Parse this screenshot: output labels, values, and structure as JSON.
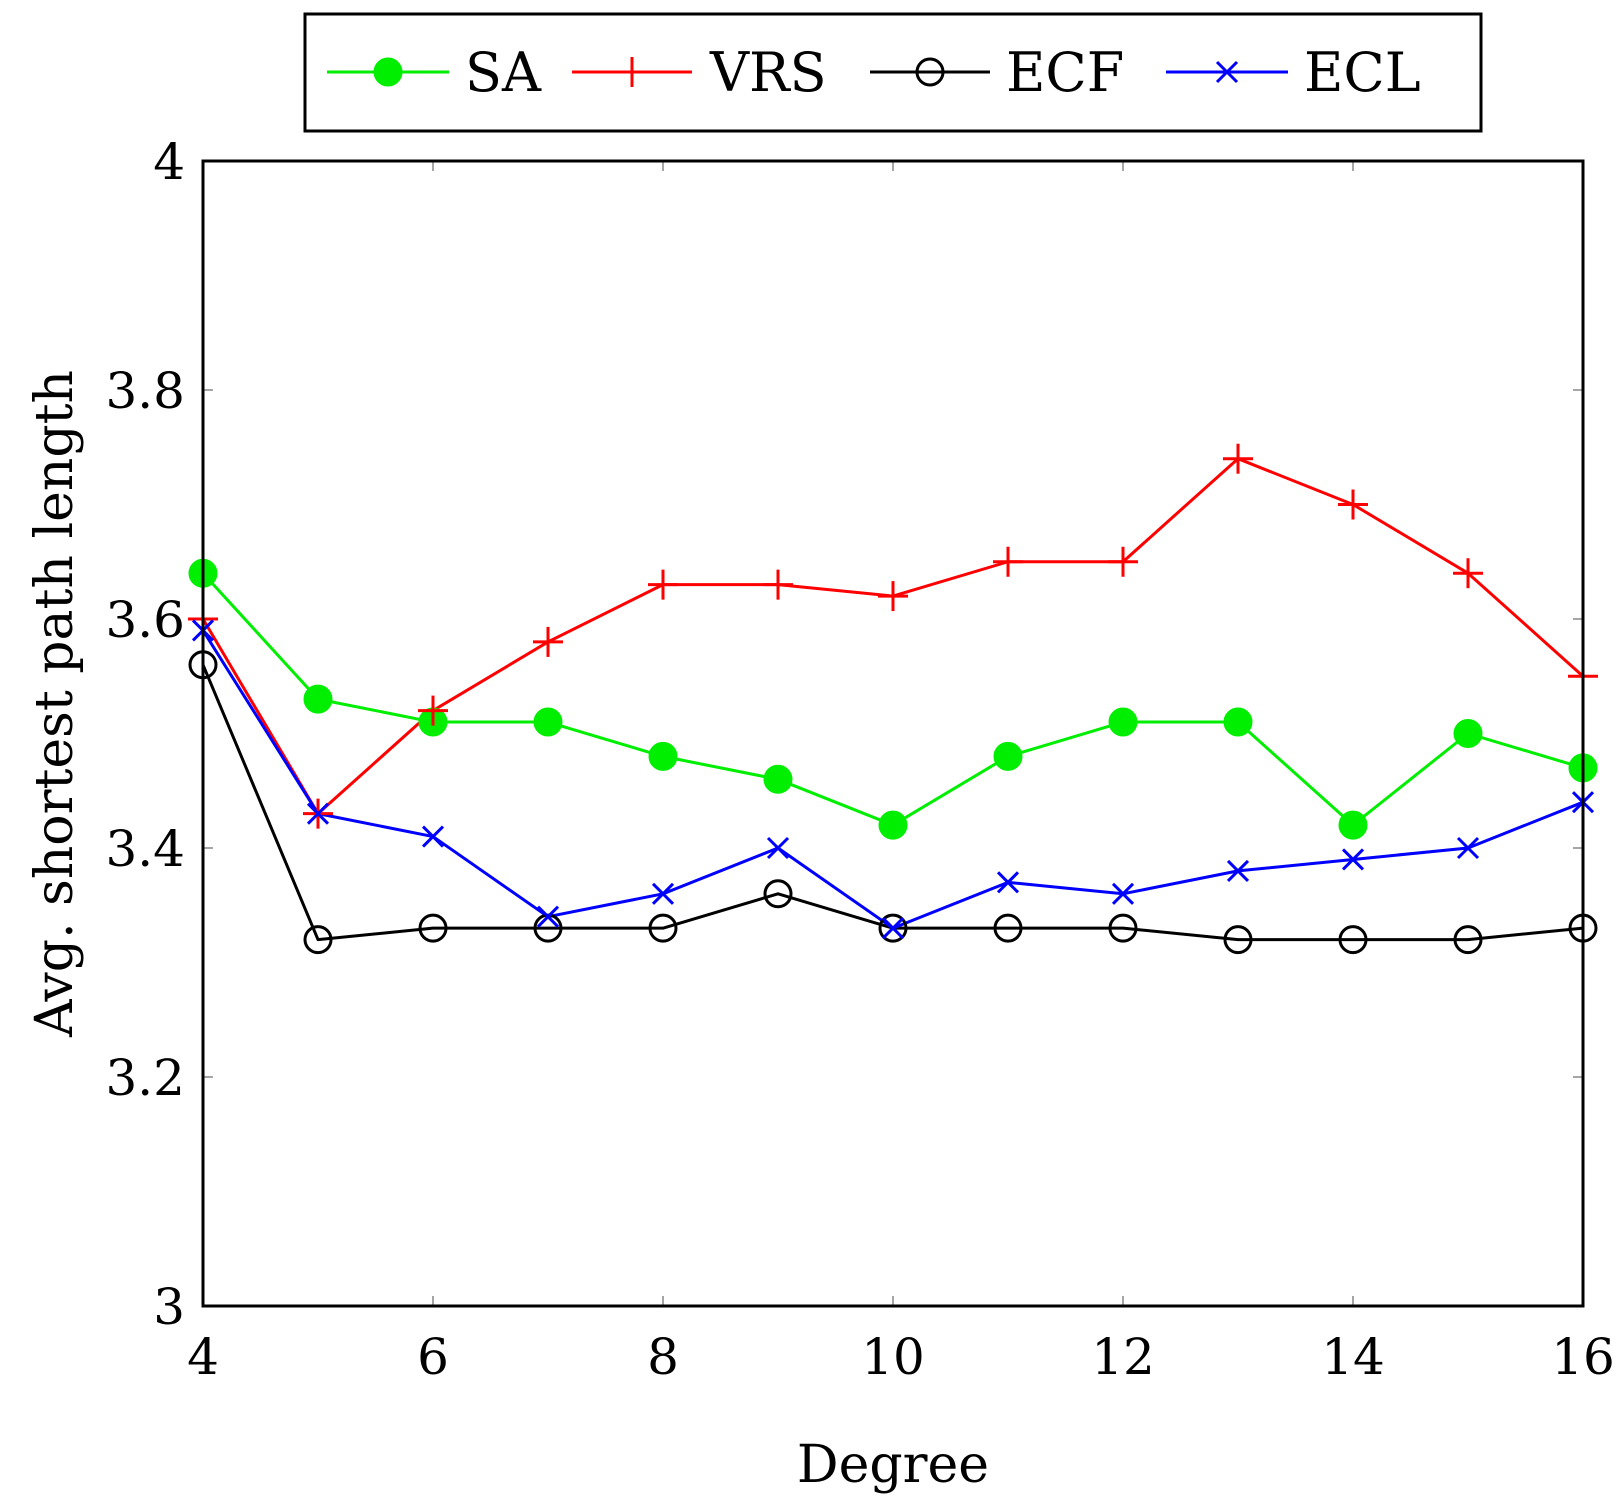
{
  "chart_data": {
    "type": "line",
    "title": "",
    "xlabel": "Degree",
    "ylabel": "Avg. shortest path length",
    "xlim": [
      4,
      16
    ],
    "ylim": [
      3,
      4
    ],
    "xticks": [
      4,
      6,
      8,
      10,
      12,
      14,
      16
    ],
    "yticks": [
      3,
      3.2,
      3.4,
      3.6,
      3.8,
      4
    ],
    "xtick_labels": [
      "4",
      "6",
      "8",
      "10",
      "12",
      "14",
      "16"
    ],
    "ytick_labels": [
      "3",
      "3.2",
      "3.4",
      "3.6",
      "3.8",
      "4"
    ],
    "legend_position": "top-center, above plot",
    "x": [
      4,
      5,
      6,
      7,
      8,
      9,
      10,
      11,
      12,
      13,
      14,
      15,
      16
    ],
    "series": [
      {
        "name": "SA",
        "color": "#00ee00",
        "marker": "filled-circle",
        "values": [
          3.64,
          3.53,
          3.51,
          3.51,
          3.48,
          3.46,
          3.42,
          3.48,
          3.51,
          3.51,
          3.42,
          3.5,
          3.47
        ]
      },
      {
        "name": "VRS",
        "color": "#ff0000",
        "marker": "plus",
        "values": [
          3.6,
          3.43,
          3.52,
          3.58,
          3.63,
          3.63,
          3.62,
          3.65,
          3.65,
          3.74,
          3.7,
          3.64,
          3.55
        ]
      },
      {
        "name": "ECF",
        "color": "#000000",
        "marker": "open-circle",
        "values": [
          3.56,
          3.32,
          3.33,
          3.33,
          3.33,
          3.36,
          3.33,
          3.33,
          3.33,
          3.32,
          3.32,
          3.32,
          3.33
        ]
      },
      {
        "name": "ECL",
        "color": "#0000ff",
        "marker": "cross",
        "values": [
          3.59,
          3.43,
          3.41,
          3.34,
          3.36,
          3.4,
          3.33,
          3.37,
          3.36,
          3.38,
          3.39,
          3.4,
          3.44
        ]
      }
    ]
  }
}
